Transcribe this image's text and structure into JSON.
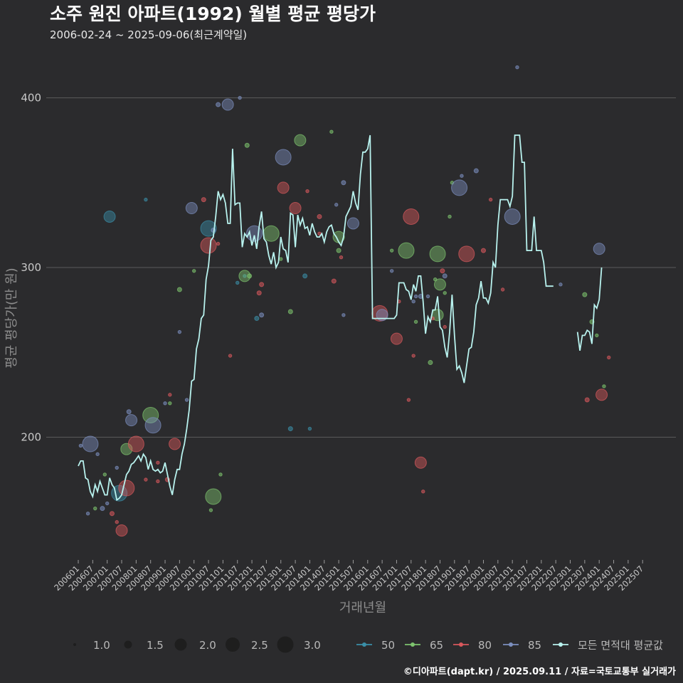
{
  "chart_data": {
    "type": "scatter",
    "title": "소주 원진 아파트(1992) 월별 평균 평당가",
    "subtitle": "2006-02-24 ~ 2025-09-06(최근계약일)",
    "xlabel": "거래년월",
    "ylabel": "평균 평당가(만 원)",
    "ylim": [
      128,
      420
    ],
    "yticks": [
      200,
      300,
      400
    ],
    "x_tick_labels": [
      "200601",
      "200607",
      "200701",
      "200707",
      "200801",
      "200807",
      "200901",
      "200907",
      "201001",
      "201007",
      "201101",
      "201107",
      "201201",
      "201207",
      "201301",
      "201307",
      "201401",
      "201407",
      "201501",
      "201507",
      "201601",
      "201607",
      "201701",
      "201707",
      "201801",
      "201807",
      "201901",
      "201907",
      "202001",
      "202007",
      "202101",
      "202107",
      "202201",
      "202207",
      "202301",
      "202307",
      "202401",
      "202407",
      "202501",
      "202507"
    ],
    "size_legend": {
      "title": "",
      "values": [
        1.0,
        1.5,
        2.0,
        2.5,
        3.0
      ],
      "labels": [
        "1.0",
        "1.5",
        "2.0",
        "2.5",
        "3.0"
      ]
    },
    "colors": {
      "50": "#3a8fa8",
      "65": "#7ec46e",
      "80": "#d9585c",
      "85": "#7c8fbf",
      "avg_line": "#b8f2ee",
      "background": "#2b2b2d",
      "grid": "#5a5a5a"
    },
    "series": [
      {
        "name": "50",
        "points": [
          [
            17,
            167
          ],
          [
            66,
            291
          ],
          [
            69,
            295
          ],
          [
            88,
            205
          ],
          [
            96,
            205
          ],
          [
            13,
            330
          ],
          [
            94,
            295
          ],
          [
            54,
            323
          ],
          [
            28,
            340
          ],
          [
            74,
            270
          ]
        ]
      },
      {
        "name": "65",
        "points": [
          [
            56,
            165
          ],
          [
            55,
            157
          ],
          [
            38,
            220
          ],
          [
            42,
            287
          ],
          [
            48,
            298
          ],
          [
            69,
            295
          ],
          [
            71,
            295
          ],
          [
            80,
            320
          ],
          [
            84,
            305
          ],
          [
            88,
            274
          ],
          [
            108,
            318
          ],
          [
            130,
            310
          ],
          [
            146,
            244
          ],
          [
            148,
            293
          ],
          [
            149,
            308
          ],
          [
            150,
            290
          ],
          [
            154,
            330
          ],
          [
            215,
            260
          ],
          [
            213,
            268
          ],
          [
            11,
            178
          ],
          [
            20,
            193
          ],
          [
            30,
            213
          ],
          [
            7,
            158
          ],
          [
            59,
            178
          ],
          [
            70,
            372
          ],
          [
            92,
            375
          ],
          [
            105,
            380
          ],
          [
            108,
            310
          ],
          [
            136,
            310
          ],
          [
            140,
            268
          ],
          [
            149,
            272
          ],
          [
            152,
            285
          ],
          [
            155,
            350
          ],
          [
            210,
            284
          ],
          [
            218,
            230
          ]
        ]
      },
      {
        "name": "80",
        "points": [
          [
            20,
            170
          ],
          [
            28,
            175
          ],
          [
            33,
            174
          ],
          [
            37,
            175
          ],
          [
            38,
            225
          ],
          [
            40,
            196
          ],
          [
            52,
            340
          ],
          [
            54,
            313
          ],
          [
            58,
            314
          ],
          [
            76,
            290
          ],
          [
            90,
            335
          ],
          [
            100,
            320
          ],
          [
            106,
            292
          ],
          [
            109,
            306
          ],
          [
            125,
            273
          ],
          [
            132,
            258
          ],
          [
            133,
            280
          ],
          [
            137,
            222
          ],
          [
            14,
            155
          ],
          [
            16,
            150
          ],
          [
            18,
            145
          ],
          [
            24,
            196
          ],
          [
            33,
            185
          ],
          [
            63,
            248
          ],
          [
            75,
            285
          ],
          [
            85,
            347
          ],
          [
            95,
            345
          ],
          [
            100,
            330
          ],
          [
            138,
            330
          ],
          [
            139,
            248
          ],
          [
            142,
            185
          ],
          [
            143,
            168
          ],
          [
            147,
            270
          ],
          [
            151,
            298
          ],
          [
            152,
            265
          ],
          [
            161,
            308
          ],
          [
            168,
            310
          ],
          [
            171,
            340
          ],
          [
            176,
            287
          ],
          [
            211,
            222
          ],
          [
            217,
            225
          ],
          [
            220,
            247
          ]
        ]
      },
      {
        "name": "85",
        "points": [
          [
            5,
            196
          ],
          [
            8,
            190
          ],
          [
            16,
            182
          ],
          [
            21,
            215
          ],
          [
            42,
            262
          ],
          [
            47,
            335
          ],
          [
            56,
            322
          ],
          [
            73,
            320
          ],
          [
            107,
            337
          ],
          [
            110,
            350
          ],
          [
            114,
            326
          ],
          [
            140,
            283
          ],
          [
            152,
            295
          ],
          [
            159,
            354
          ],
          [
            180,
            330
          ],
          [
            216,
            311
          ],
          [
            1,
            195
          ],
          [
            4,
            155
          ],
          [
            10,
            158
          ],
          [
            12,
            161
          ],
          [
            22,
            210
          ],
          [
            31,
            207
          ],
          [
            36,
            220
          ],
          [
            45,
            222
          ],
          [
            58,
            396
          ],
          [
            62,
            396
          ],
          [
            67,
            400
          ],
          [
            76,
            272
          ],
          [
            85,
            365
          ],
          [
            110,
            272
          ],
          [
            126,
            272
          ],
          [
            130,
            298
          ],
          [
            139,
            280
          ],
          [
            142,
            283
          ],
          [
            145,
            283
          ],
          [
            158,
            347
          ],
          [
            165,
            357
          ],
          [
            182,
            418
          ],
          [
            200,
            290
          ]
        ]
      }
    ],
    "average_line": {
      "name": "모든 면적대 평균값",
      "points": [
        [
          0,
          183
        ],
        [
          1,
          186
        ],
        [
          2,
          186
        ],
        [
          3,
          176
        ],
        [
          4,
          175
        ],
        [
          5,
          168
        ],
        [
          6,
          165
        ],
        [
          7,
          172
        ],
        [
          8,
          168
        ],
        [
          9,
          174
        ],
        [
          10,
          170
        ],
        [
          11,
          166
        ],
        [
          12,
          166
        ],
        [
          13,
          176
        ],
        [
          14,
          172
        ],
        [
          15,
          170
        ],
        [
          16,
          163
        ],
        [
          17,
          164
        ],
        [
          18,
          166
        ],
        [
          19,
          172
        ],
        [
          20,
          178
        ],
        [
          21,
          180
        ],
        [
          22,
          184
        ],
        [
          23,
          185
        ],
        [
          24,
          187
        ],
        [
          25,
          189
        ],
        [
          26,
          186
        ],
        [
          27,
          190
        ],
        [
          28,
          188
        ],
        [
          29,
          181
        ],
        [
          30,
          186
        ],
        [
          31,
          181
        ],
        [
          32,
          180
        ],
        [
          33,
          181
        ],
        [
          34,
          179
        ],
        [
          35,
          180
        ],
        [
          36,
          185
        ],
        [
          37,
          178
        ],
        [
          38,
          171
        ],
        [
          39,
          166
        ],
        [
          40,
          175
        ],
        [
          41,
          181
        ],
        [
          42,
          181
        ],
        [
          43,
          190
        ],
        [
          44,
          196
        ],
        [
          45,
          205
        ],
        [
          46,
          216
        ],
        [
          47,
          233
        ],
        [
          48,
          234
        ],
        [
          49,
          252
        ],
        [
          50,
          258
        ],
        [
          51,
          270
        ],
        [
          52,
          272
        ],
        [
          53,
          293
        ],
        [
          54,
          301
        ],
        [
          55,
          316
        ],
        [
          56,
          318
        ],
        [
          57,
          330
        ],
        [
          58,
          345
        ],
        [
          59,
          340
        ],
        [
          60,
          343
        ],
        [
          61,
          338
        ],
        [
          62,
          326
        ],
        [
          63,
          326
        ],
        [
          64,
          370
        ],
        [
          65,
          337
        ],
        [
          66,
          338
        ],
        [
          67,
          338
        ],
        [
          68,
          312
        ],
        [
          69,
          320
        ],
        [
          70,
          318
        ],
        [
          71,
          321
        ],
        [
          72,
          313
        ],
        [
          73,
          319
        ],
        [
          74,
          311
        ],
        [
          75,
          324
        ],
        [
          76,
          333
        ],
        [
          77,
          317
        ],
        [
          78,
          315
        ],
        [
          79,
          307
        ],
        [
          80,
          302
        ],
        [
          81,
          309
        ],
        [
          82,
          300
        ],
        [
          83,
          303
        ],
        [
          84,
          318
        ],
        [
          85,
          311
        ],
        [
          86,
          310
        ],
        [
          87,
          303
        ],
        [
          88,
          332
        ],
        [
          89,
          331
        ],
        [
          90,
          312
        ],
        [
          91,
          331
        ],
        [
          92,
          325
        ],
        [
          93,
          329
        ],
        [
          94,
          323
        ],
        [
          95,
          324
        ],
        [
          96,
          319
        ],
        [
          97,
          326
        ],
        [
          98,
          321
        ],
        [
          99,
          318
        ],
        [
          100,
          318
        ],
        [
          101,
          320
        ],
        [
          102,
          315
        ],
        [
          103,
          321
        ],
        [
          104,
          324
        ],
        [
          105,
          325
        ],
        [
          106,
          320
        ],
        [
          107,
          318
        ],
        [
          108,
          315
        ],
        [
          109,
          313
        ],
        [
          110,
          318
        ],
        [
          111,
          330
        ],
        [
          112,
          333
        ],
        [
          113,
          336
        ],
        [
          114,
          345
        ],
        [
          115,
          338
        ],
        [
          116,
          334
        ],
        [
          117,
          355
        ],
        [
          118,
          368
        ],
        [
          119,
          368
        ],
        [
          120,
          370
        ],
        [
          121,
          378
        ],
        [
          122,
          270
        ],
        [
          123,
          270
        ],
        [
          124,
          270
        ],
        [
          125,
          270
        ],
        [
          126,
          270
        ],
        [
          127,
          270
        ],
        [
          128,
          270
        ],
        [
          129,
          270
        ],
        [
          130,
          270
        ],
        [
          131,
          270
        ],
        [
          132,
          272
        ],
        [
          133,
          291
        ],
        [
          134,
          291
        ],
        [
          135,
          291
        ],
        [
          136,
          287
        ],
        [
          137,
          286
        ],
        [
          138,
          281
        ],
        [
          139,
          290
        ],
        [
          140,
          286
        ],
        [
          141,
          295
        ],
        [
          142,
          295
        ],
        [
          143,
          280
        ],
        [
          144,
          261
        ],
        [
          145,
          271
        ],
        [
          146,
          268
        ],
        [
          147,
          275
        ],
        [
          148,
          275
        ],
        [
          149,
          283
        ],
        [
          150,
          265
        ],
        [
          151,
          263
        ],
        [
          152,
          253
        ],
        [
          153,
          247
        ],
        [
          154,
          262
        ],
        [
          155,
          284
        ],
        [
          156,
          260
        ],
        [
          157,
          240
        ],
        [
          158,
          242
        ],
        [
          159,
          238
        ],
        [
          160,
          232
        ],
        [
          161,
          242
        ],
        [
          162,
          252
        ],
        [
          163,
          253
        ],
        [
          164,
          262
        ],
        [
          165,
          278
        ],
        [
          166,
          282
        ],
        [
          167,
          292
        ],
        [
          168,
          282
        ],
        [
          169,
          282
        ],
        [
          170,
          279
        ],
        [
          171,
          285
        ],
        [
          172,
          303
        ],
        [
          173,
          300
        ],
        [
          174,
          325
        ],
        [
          175,
          340
        ],
        [
          176,
          340
        ],
        [
          177,
          340
        ],
        [
          178,
          340
        ],
        [
          179,
          336
        ],
        [
          180,
          342
        ],
        [
          181,
          378
        ],
        [
          182,
          378
        ],
        [
          183,
          378
        ],
        [
          184,
          362
        ],
        [
          185,
          362
        ],
        [
          186,
          310
        ],
        [
          187,
          310
        ],
        [
          188,
          310
        ],
        [
          189,
          330
        ],
        [
          190,
          310
        ],
        [
          191,
          310
        ],
        [
          192,
          310
        ],
        [
          193,
          303
        ],
        [
          194,
          289
        ],
        [
          195,
          289
        ],
        [
          196,
          289
        ],
        [
          197,
          289
        ]
      ],
      "segment2": [
        [
          207,
          262
        ],
        [
          208,
          251
        ],
        [
          209,
          260
        ],
        [
          210,
          260
        ],
        [
          211,
          263
        ],
        [
          212,
          262
        ],
        [
          213,
          255
        ],
        [
          214,
          278
        ],
        [
          215,
          276
        ],
        [
          216,
          281
        ],
        [
          217,
          300
        ]
      ]
    },
    "legend_entries": [
      "50",
      "65",
      "80",
      "85",
      "모든 면적대 평균값"
    ]
  },
  "caption": "©디아파트(dapt.kr) / 2025.09.11 / 자료=국토교통부 실거래가"
}
